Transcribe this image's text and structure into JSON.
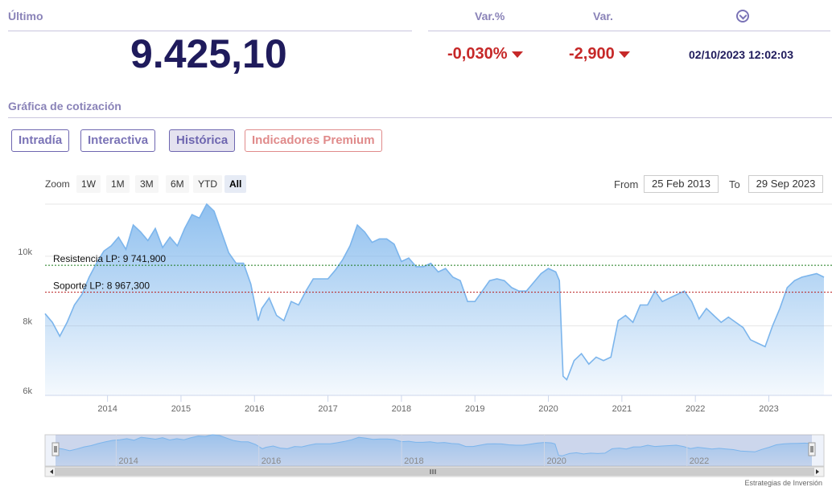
{
  "header": {
    "last_label": "Último",
    "last_value": "9.425,10",
    "var_pct_label": "Var.%",
    "var_label": "Var.",
    "var_pct_value": "-0,030%",
    "var_value": "-2,900",
    "datetime": "02/10/2023 12:02:03",
    "clock_icon": "chevron-circle-icon"
  },
  "section_title": "Gráfica de cotización",
  "tabs": [
    {
      "label": "Intradía"
    },
    {
      "label": "Interactiva"
    },
    {
      "label": "Histórica"
    },
    {
      "label": "Indicadores Premium"
    }
  ],
  "zoom": {
    "label": "Zoom",
    "buttons": [
      "1W",
      "1M",
      "3M",
      "6M",
      "YTD",
      "All"
    ],
    "selected": "All"
  },
  "range": {
    "from_label": "From",
    "from_value": "25 Feb 2013",
    "to_label": "To",
    "to_value": "29 Sep 2023"
  },
  "credit": "Estrategias de Inversión",
  "colors": {
    "accent": "#6e66b0",
    "negative": "#c62828",
    "series": "#7cb5ec",
    "resistance": "#1b7a1b",
    "support": "#b71c1c"
  },
  "chart_data": {
    "type": "area",
    "ylim": [
      6000,
      11500
    ],
    "yticks": [
      {
        "v": 6000,
        "label": "6k"
      },
      {
        "v": 8000,
        "label": "8k"
      },
      {
        "v": 10000,
        "label": "10k"
      }
    ],
    "xlim": [
      2013.15,
      2023.75
    ],
    "xticks": [
      {
        "v": 2014,
        "label": "2014"
      },
      {
        "v": 2015,
        "label": "2015"
      },
      {
        "v": 2016,
        "label": "2016"
      },
      {
        "v": 2017,
        "label": "2017"
      },
      {
        "v": 2018,
        "label": "2018"
      },
      {
        "v": 2019,
        "label": "2019"
      },
      {
        "v": 2020,
        "label": "2020"
      },
      {
        "v": 2021,
        "label": "2021"
      },
      {
        "v": 2022,
        "label": "2022"
      },
      {
        "v": 2023,
        "label": "2023"
      }
    ],
    "navigator_ticks": [
      {
        "v": 2014,
        "label": "2014"
      },
      {
        "v": 2016,
        "label": "2016"
      },
      {
        "v": 2018,
        "label": "2018"
      },
      {
        "v": 2020,
        "label": "2020"
      },
      {
        "v": 2022,
        "label": "2022"
      }
    ],
    "series": [
      {
        "x": [
          2013.15,
          2013.25,
          2013.35,
          2013.45,
          2013.55,
          2013.65,
          2013.75,
          2013.85,
          2013.95,
          2014.05,
          2014.15,
          2014.25,
          2014.35,
          2014.45,
          2014.55,
          2014.65,
          2014.75,
          2014.85,
          2014.95,
          2015.05,
          2015.15,
          2015.25,
          2015.35,
          2015.45,
          2015.55,
          2015.65,
          2015.75,
          2015.85,
          2015.95,
          2016.05,
          2016.1,
          2016.2,
          2016.3,
          2016.4,
          2016.5,
          2016.6,
          2016.7,
          2016.8,
          2016.9,
          2017.0,
          2017.1,
          2017.2,
          2017.3,
          2017.4,
          2017.5,
          2017.6,
          2017.7,
          2017.8,
          2017.9,
          2018.0,
          2018.1,
          2018.2,
          2018.3,
          2018.4,
          2018.5,
          2018.6,
          2018.7,
          2018.8,
          2018.9,
          2019.0,
          2019.1,
          2019.2,
          2019.3,
          2019.4,
          2019.5,
          2019.6,
          2019.7,
          2019.8,
          2019.9,
          2020.0,
          2020.1,
          2020.15,
          2020.2,
          2020.25,
          2020.35,
          2020.45,
          2020.55,
          2020.65,
          2020.75,
          2020.85,
          2020.95,
          2021.05,
          2021.15,
          2021.25,
          2021.35,
          2021.45,
          2021.55,
          2021.65,
          2021.75,
          2021.85,
          2021.95,
          2022.05,
          2022.15,
          2022.25,
          2022.35,
          2022.45,
          2022.55,
          2022.65,
          2022.75,
          2022.85,
          2022.95,
          2023.05,
          2023.15,
          2023.25,
          2023.35,
          2023.45,
          2023.55,
          2023.65,
          2023.75
        ],
        "values": [
          8350,
          8100,
          7700,
          8100,
          8600,
          8900,
          9400,
          9800,
          10150,
          10300,
          10550,
          10200,
          10900,
          10700,
          10450,
          10800,
          10250,
          10550,
          10300,
          10800,
          11200,
          11100,
          11500,
          11300,
          10700,
          10100,
          9800,
          9800,
          9200,
          8150,
          8500,
          8800,
          8300,
          8150,
          8700,
          8600,
          9000,
          9350,
          9350,
          9350,
          9600,
          9900,
          10300,
          10900,
          10700,
          10400,
          10500,
          10500,
          10350,
          9850,
          9950,
          9700,
          9700,
          9800,
          9550,
          9650,
          9400,
          9300,
          8700,
          8700,
          9000,
          9300,
          9350,
          9300,
          9100,
          9000,
          9000,
          9250,
          9500,
          9650,
          9550,
          9300,
          6550,
          6450,
          7000,
          7200,
          6900,
          7100,
          7000,
          7100,
          8150,
          8300,
          8100,
          8600,
          8600,
          9000,
          8700,
          8800,
          8900,
          9000,
          8700,
          8200,
          8500,
          8300,
          8100,
          8250,
          8100,
          7950,
          7600,
          7500,
          7400,
          8000,
          8500,
          9100,
          9300,
          9400,
          9450,
          9500,
          9400
        ]
      }
    ],
    "lines": [
      {
        "name": "Resistencia LP",
        "label": "Resistencia LP: 9 741,900",
        "value": 9741.9
      },
      {
        "name": "Soporte LP",
        "label": "Soporte LP: 8 967,300",
        "value": 8967.3
      }
    ]
  }
}
